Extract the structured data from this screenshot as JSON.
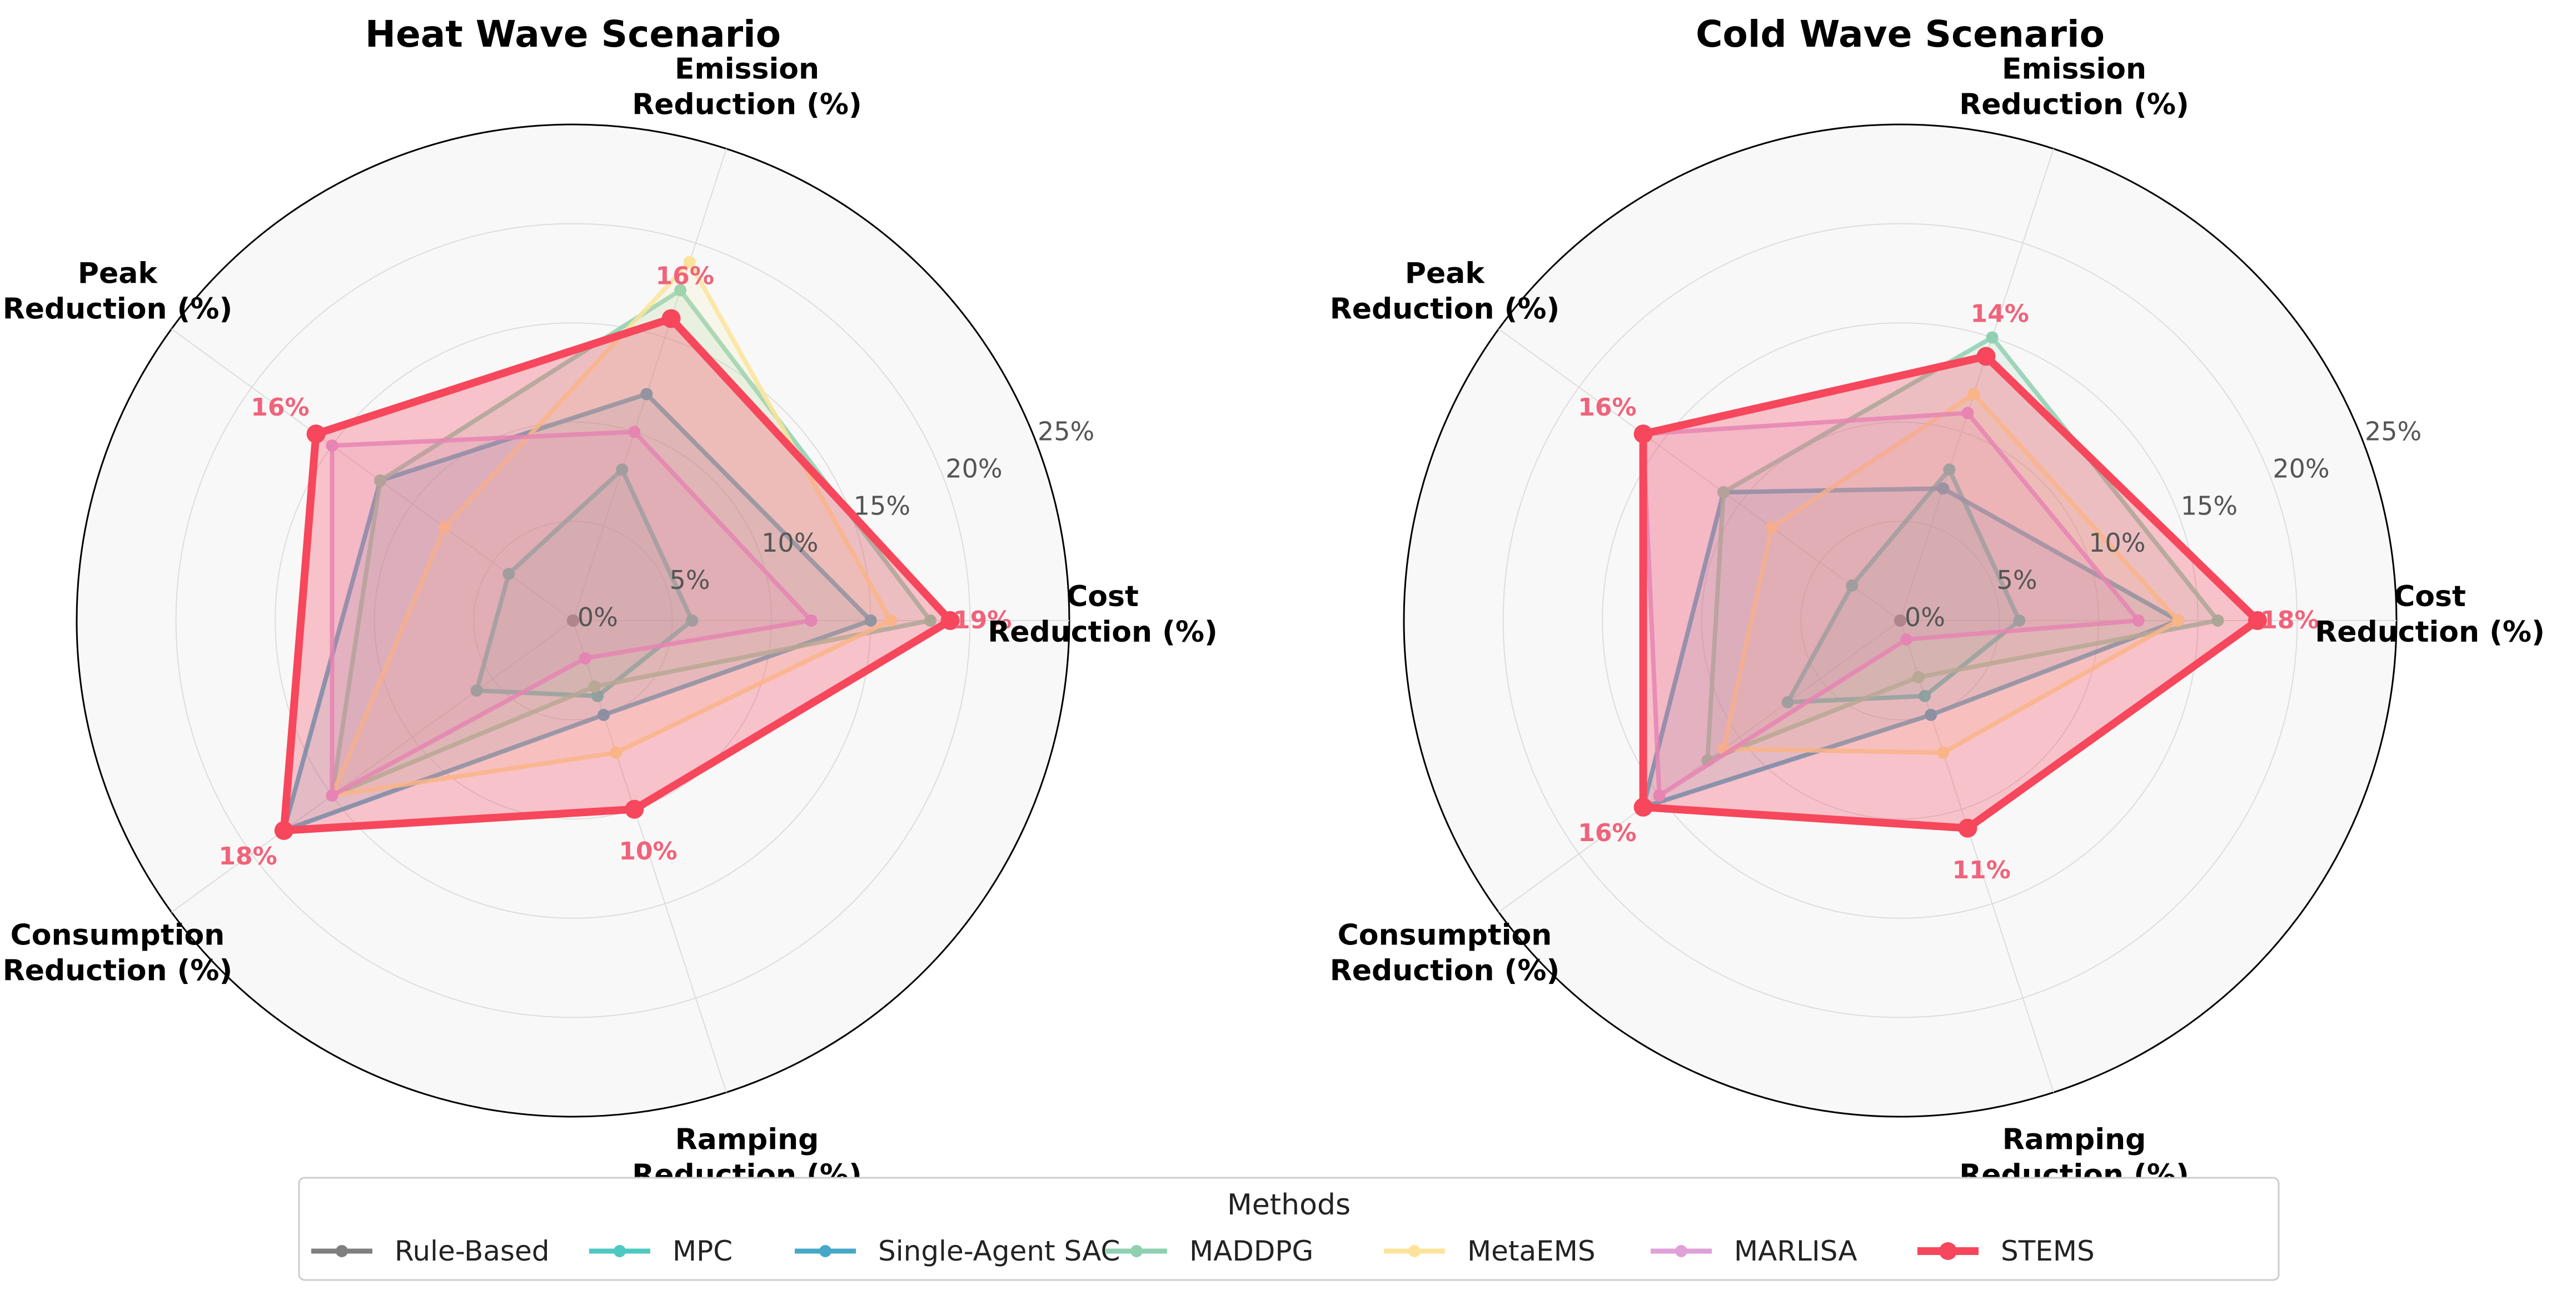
{
  "chart_data": {
    "type": "radar",
    "axes": [
      [
        "Cost",
        "Reduction (%)"
      ],
      [
        "Emission",
        "Reduction (%)"
      ],
      [
        "Peak",
        "Reduction (%)"
      ],
      [
        "Consumption",
        "Reduction (%)"
      ],
      [
        "Ramping",
        "Reduction (%)"
      ]
    ],
    "rlim": [
      0,
      25
    ],
    "rticks": [
      {
        "value": 0,
        "label": "0%"
      },
      {
        "value": 5,
        "label": "5%"
      },
      {
        "value": 10,
        "label": "10%"
      },
      {
        "value": 15,
        "label": "15%"
      },
      {
        "value": 20,
        "label": "20%"
      },
      {
        "value": 25,
        "label": "25%"
      }
    ],
    "legend": {
      "title": "Methods",
      "placement": "bottom-center"
    },
    "methods": [
      {
        "name": "Rule-Based",
        "color": "#7f7f7f",
        "highlight": false
      },
      {
        "name": "MPC",
        "color": "#4ec9c0",
        "highlight": false
      },
      {
        "name": "Single-Agent SAC",
        "color": "#45a8c8",
        "highlight": false
      },
      {
        "name": "MADDPG",
        "color": "#8fd0b0",
        "highlight": false
      },
      {
        "name": "MetaEMS",
        "color": "#fbe49a",
        "highlight": false
      },
      {
        "name": "MARLISA",
        "color": "#e0a0d8",
        "highlight": false
      },
      {
        "name": "STEMS",
        "color": "#f6475c",
        "highlight": true
      }
    ],
    "panels": [
      {
        "title": "Heat Wave Scenario",
        "series": [
          {
            "name": "Rule-Based",
            "values": [
              0,
              0,
              0,
              0,
              0
            ]
          },
          {
            "name": "MPC",
            "values": [
              6,
              8,
              4,
              6,
              4
            ]
          },
          {
            "name": "Single-Agent SAC",
            "values": [
              15,
              12,
              12,
              18,
              5
            ]
          },
          {
            "name": "MADDPG",
            "values": [
              18,
              17.5,
              12,
              15,
              3.5
            ]
          },
          {
            "name": "MetaEMS",
            "values": [
              16,
              19,
              8,
              15,
              7
            ]
          },
          {
            "name": "MARLISA",
            "values": [
              12,
              10,
              15,
              15,
              2
            ]
          },
          {
            "name": "STEMS",
            "values": [
              19,
              16,
              16,
              18,
              10
            ]
          }
        ],
        "labels": [
          "19%",
          "16%",
          "16%",
          "18%",
          "10%"
        ]
      },
      {
        "title": "Cold Wave Scenario",
        "series": [
          {
            "name": "Rule-Based",
            "values": [
              0,
              0,
              0,
              0,
              0
            ]
          },
          {
            "name": "MPC",
            "values": [
              6,
              8,
              3,
              7,
              4
            ]
          },
          {
            "name": "Single-Agent SAC",
            "values": [
              14,
              7,
              11,
              16,
              5
            ]
          },
          {
            "name": "MADDPG",
            "values": [
              16,
              15,
              11,
              12,
              3
            ]
          },
          {
            "name": "MetaEMS",
            "values": [
              14,
              12,
              8,
              11,
              7
            ]
          },
          {
            "name": "MARLISA",
            "values": [
              12,
              11,
              16,
              15,
              1
            ]
          },
          {
            "name": "STEMS",
            "values": [
              18,
              14,
              16,
              16,
              11
            ]
          }
        ],
        "labels": [
          "18%",
          "14%",
          "16%",
          "16%",
          "11%"
        ]
      }
    ]
  }
}
